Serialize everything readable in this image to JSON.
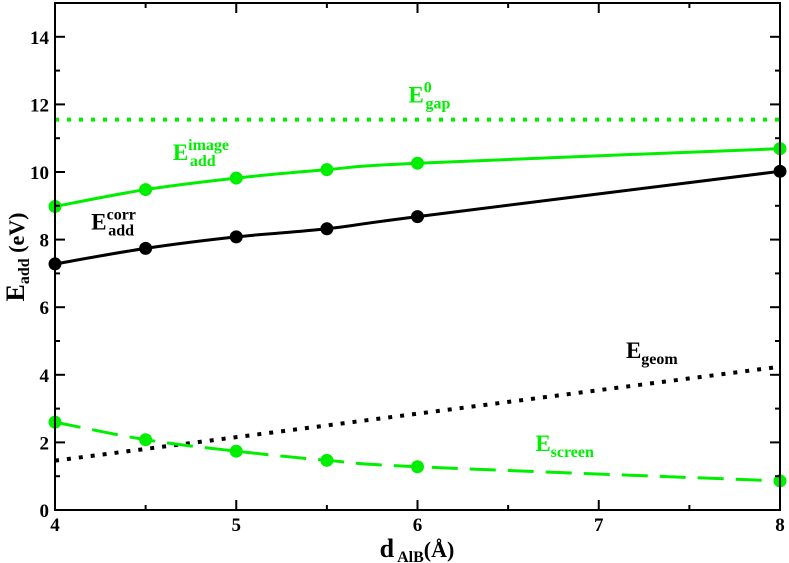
{
  "chart_data": {
    "type": "line",
    "xlim": [
      4,
      8
    ],
    "ylim": [
      0,
      15
    ],
    "x_ticks": [
      "4",
      "5",
      "6",
      "7",
      "8"
    ],
    "y_ticks": [
      "0",
      "2",
      "4",
      "6",
      "8",
      "10",
      "12",
      "14"
    ],
    "xlabel": {
      "main": "d",
      "sub": "AlB",
      "paren_open": "(",
      "unit": "Å",
      "paren_close": ")"
    },
    "ylabel": {
      "main": "E",
      "sub": "add",
      "unit": " (eV)"
    },
    "grid": false,
    "colors": {
      "green": "#00ee00",
      "black": "#000000"
    },
    "series": [
      {
        "name": "E_gap^0",
        "style": "dotted",
        "color": "#00ee00",
        "markers": false,
        "x": [
          4,
          8
        ],
        "y": [
          11.55,
          11.55
        ],
        "label": {
          "main": "E",
          "sup": "0",
          "sub": "gap",
          "at": [
            5.95,
            12.05
          ]
        }
      },
      {
        "name": "E_add^image",
        "style": "solid",
        "color": "#00ee00",
        "markers": true,
        "x": [
          4,
          4.5,
          5,
          5.5,
          6,
          8
        ],
        "y": [
          8.98,
          9.48,
          9.82,
          10.07,
          10.26,
          10.69
        ],
        "label": {
          "main": "E",
          "sup": "image",
          "sub": "add",
          "at": [
            4.65,
            10.35
          ]
        }
      },
      {
        "name": "E_add^corr",
        "style": "solid",
        "color": "#000000",
        "markers": true,
        "x": [
          4,
          4.5,
          5,
          5.5,
          6,
          8
        ],
        "y": [
          7.28,
          7.74,
          8.08,
          8.32,
          8.68,
          10.02
        ],
        "label": {
          "main": "E",
          "sup": "corr",
          "sub": "add",
          "at": [
            4.2,
            8.3
          ]
        }
      },
      {
        "name": "E_geom",
        "style": "dotted",
        "color": "#000000",
        "markers": false,
        "x": [
          4,
          8
        ],
        "y": [
          1.46,
          4.24
        ],
        "label": {
          "main": "E",
          "sup": "",
          "sub": "geom",
          "at": [
            7.15,
            4.5
          ]
        }
      },
      {
        "name": "E_screen",
        "style": "dashed",
        "color": "#00ee00",
        "markers": true,
        "x": [
          4,
          4.5,
          5,
          5.5,
          6,
          8
        ],
        "y": [
          2.6,
          2.08,
          1.74,
          1.47,
          1.28,
          0.86
        ],
        "label": {
          "main": "E",
          "sup": "",
          "sub": "screen",
          "at": [
            6.65,
            1.75
          ]
        }
      }
    ]
  }
}
